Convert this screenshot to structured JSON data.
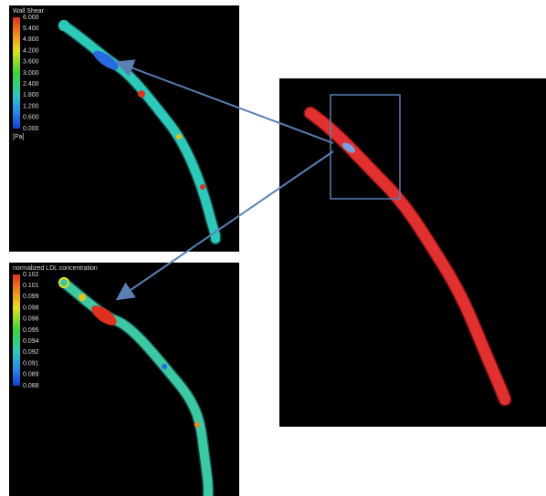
{
  "panels": [
    {
      "legend_title": "Wall Shear",
      "legend_labels": [
        "6.000",
        "5.400",
        "4.800",
        "4.200",
        "3.600",
        "3.000",
        "2.400",
        "1.800",
        "1.200",
        "0.600",
        "0.000"
      ],
      "legend_unit": "[Pa]"
    },
    {
      "legend_title": "normalized LDL concentration",
      "legend_labels": [
        "0.102",
        "0.101",
        "0.099",
        "0.098",
        "0.096",
        "0.095",
        "0.094",
        "0.092",
        "0.091",
        "0.089",
        "0.088"
      ]
    }
  ]
}
